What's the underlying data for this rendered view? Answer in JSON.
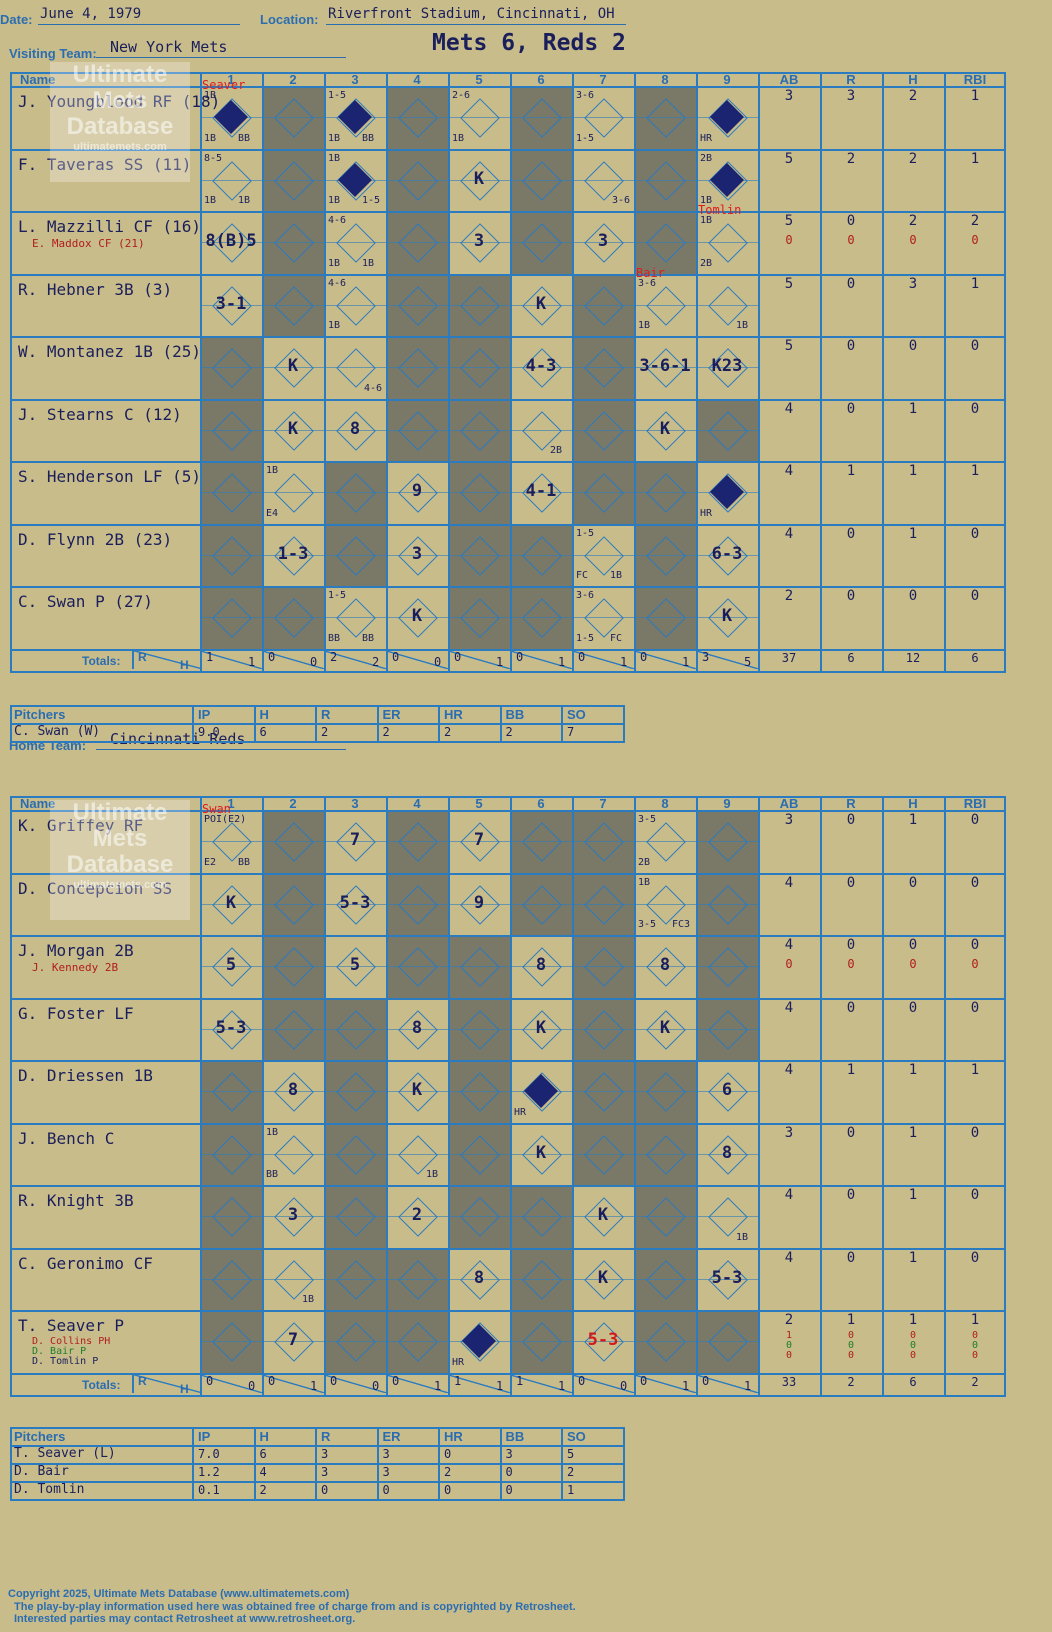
{
  "header": {
    "date_label": "Date:",
    "date": "June 4, 1979",
    "location_label": "Location:",
    "location": "Riverfront Stadium, Cincinnati, OH",
    "result": "Mets 6, Reds 2"
  },
  "labels": {
    "visiting_team": "Visiting Team:",
    "home_team": "Home Team:",
    "name": "Name",
    "innings": [
      "1",
      "2",
      "3",
      "4",
      "5",
      "6",
      "7",
      "8",
      "9"
    ],
    "stat_cols": [
      "AB",
      "R",
      "H",
      "RBI"
    ],
    "totals": "Totals:",
    "r": "R",
    "h": "H",
    "pitchers": "Pitchers",
    "pcols": [
      "IP",
      "H",
      "R",
      "ER",
      "HR",
      "BB",
      "SO"
    ]
  },
  "visitors": {
    "team": "New York Mets",
    "players": [
      {
        "name": "J. Youngblood RF (18)",
        "sub": "",
        "stats": [
          "3",
          "3",
          "2",
          "1"
        ],
        "sub_stats": null
      },
      {
        "name": "F. Taveras SS (11)",
        "sub": "",
        "stats": [
          "5",
          "2",
          "2",
          "1"
        ],
        "sub_stats": null
      },
      {
        "name": "L. Mazzilli CF (16)",
        "sub": "E. Maddox CF (21)",
        "stats": [
          "5",
          "0",
          "2",
          "2"
        ],
        "sub_stats": [
          "0",
          "0",
          "0",
          "0"
        ]
      },
      {
        "name": "R. Hebner 3B (3)",
        "sub": "",
        "stats": [
          "5",
          "0",
          "3",
          "1"
        ],
        "sub_stats": null
      },
      {
        "name": "W. Montanez 1B (25)",
        "sub": "",
        "stats": [
          "5",
          "0",
          "0",
          "0"
        ],
        "sub_stats": null
      },
      {
        "name": "J. Stearns C (12)",
        "sub": "",
        "stats": [
          "4",
          "0",
          "1",
          "0"
        ],
        "sub_stats": null
      },
      {
        "name": "S. Henderson LF (5)",
        "sub": "",
        "stats": [
          "4",
          "1",
          "1",
          "1"
        ],
        "sub_stats": null
      },
      {
        "name": "D. Flynn 2B (23)",
        "sub": "",
        "stats": [
          "4",
          "0",
          "1",
          "0"
        ],
        "sub_stats": null
      },
      {
        "name": "C. Swan P (27)",
        "sub": "",
        "stats": [
          "2",
          "0",
          "0",
          "0"
        ],
        "sub_stats": null
      }
    ],
    "events": [
      {
        "r": 0,
        "c": 0,
        "t": "",
        "notes": [
          "1B",
          "1B",
          "BB"
        ],
        "run": true,
        "pitcher_note": "Seaver"
      },
      {
        "r": 0,
        "c": 2,
        "t": "",
        "notes": [
          "1-5",
          "1B",
          "BB"
        ],
        "run": true
      },
      {
        "r": 0,
        "c": 4,
        "t": "",
        "notes": [
          "2-6",
          "1B"
        ]
      },
      {
        "r": 0,
        "c": 6,
        "t": "",
        "notes": [
          "3-6",
          "1-5"
        ]
      },
      {
        "r": 0,
        "c": 8,
        "t": "",
        "notes": [
          "HR"
        ],
        "run": true
      },
      {
        "r": 1,
        "c": 0,
        "t": "",
        "notes": [
          "8-5",
          "1B",
          "1B"
        ]
      },
      {
        "r": 1,
        "c": 2,
        "t": "",
        "notes": [
          "1B",
          "1B",
          "1-5"
        ],
        "run": true
      },
      {
        "r": 1,
        "c": 4,
        "t": "K",
        "notes": []
      },
      {
        "r": 1,
        "c": 6,
        "t": "",
        "notes": [
          "3-6"
        ]
      },
      {
        "r": 1,
        "c": 8,
        "t": "",
        "notes": [
          "2B",
          "1B"
        ],
        "run": true
      },
      {
        "r": 2,
        "c": 0,
        "t": "8(B)5",
        "notes": []
      },
      {
        "r": 2,
        "c": 2,
        "t": "",
        "notes": [
          "4-6",
          "1B",
          "1B"
        ]
      },
      {
        "r": 2,
        "c": 4,
        "t": "3",
        "notes": []
      },
      {
        "r": 2,
        "c": 6,
        "t": "3",
        "notes": []
      },
      {
        "r": 2,
        "c": 8,
        "t": "",
        "notes": [
          "1B",
          "2B"
        ],
        "pitcher_note": "Tomlin"
      },
      {
        "r": 3,
        "c": 0,
        "t": "3-1",
        "notes": []
      },
      {
        "r": 3,
        "c": 2,
        "t": "",
        "notes": [
          "4-6",
          "1B"
        ]
      },
      {
        "r": 3,
        "c": 5,
        "t": "K",
        "notes": []
      },
      {
        "r": 3,
        "c": 7,
        "t": "",
        "notes": [
          "3-6",
          "1B"
        ],
        "pitcher_note": "Bair"
      },
      {
        "r": 3,
        "c": 8,
        "t": "",
        "notes": [
          "1B"
        ]
      },
      {
        "r": 4,
        "c": 1,
        "t": "K",
        "notes": []
      },
      {
        "r": 4,
        "c": 2,
        "t": "",
        "notes": [
          "4-6"
        ]
      },
      {
        "r": 4,
        "c": 5,
        "t": "4-3",
        "notes": []
      },
      {
        "r": 4,
        "c": 7,
        "t": "3-6-1",
        "notes": []
      },
      {
        "r": 4,
        "c": 8,
        "t": "K23",
        "notes": []
      },
      {
        "r": 5,
        "c": 1,
        "t": "K",
        "notes": []
      },
      {
        "r": 5,
        "c": 2,
        "t": "8",
        "notes": []
      },
      {
        "r": 5,
        "c": 5,
        "t": "",
        "notes": [
          "2B"
        ]
      },
      {
        "r": 5,
        "c": 7,
        "t": "K",
        "notes": []
      },
      {
        "r": 6,
        "c": 1,
        "t": "",
        "notes": [
          "1B",
          "E4"
        ]
      },
      {
        "r": 6,
        "c": 3,
        "t": "9",
        "notes": []
      },
      {
        "r": 6,
        "c": 5,
        "t": "4-1",
        "notes": []
      },
      {
        "r": 6,
        "c": 8,
        "t": "",
        "notes": [
          "HR"
        ],
        "run": true
      },
      {
        "r": 7,
        "c": 1,
        "t": "1-3",
        "notes": []
      },
      {
        "r": 7,
        "c": 3,
        "t": "3",
        "notes": []
      },
      {
        "r": 7,
        "c": 6,
        "t": "",
        "notes": [
          "1-5",
          "FC",
          "1B"
        ]
      },
      {
        "r": 7,
        "c": 8,
        "t": "6-3",
        "notes": []
      },
      {
        "r": 8,
        "c": 2,
        "t": "",
        "notes": [
          "1-5",
          "BB",
          "BB"
        ]
      },
      {
        "r": 8,
        "c": 3,
        "t": "K",
        "notes": []
      },
      {
        "r": 8,
        "c": 6,
        "t": "",
        "notes": [
          "3-6",
          "1-5",
          "FC"
        ]
      },
      {
        "r": 8,
        "c": 8,
        "t": "K",
        "notes": []
      }
    ],
    "shaded": [
      [
        0,
        1
      ],
      [
        0,
        3
      ],
      [
        0,
        5
      ],
      [
        0,
        7
      ],
      [
        1,
        1
      ],
      [
        1,
        3
      ],
      [
        1,
        5
      ],
      [
        1,
        7
      ],
      [
        2,
        1
      ],
      [
        2,
        3
      ],
      [
        2,
        5
      ],
      [
        2,
        7
      ],
      [
        3,
        1
      ],
      [
        3,
        3
      ],
      [
        3,
        4
      ],
      [
        3,
        6
      ],
      [
        4,
        0
      ],
      [
        4,
        3
      ],
      [
        4,
        4
      ],
      [
        4,
        6
      ],
      [
        5,
        0
      ],
      [
        5,
        3
      ],
      [
        5,
        4
      ],
      [
        5,
        6
      ],
      [
        5,
        8
      ],
      [
        6,
        0
      ],
      [
        6,
        2
      ],
      [
        6,
        4
      ],
      [
        6,
        6
      ],
      [
        6,
        7
      ],
      [
        7,
        0
      ],
      [
        7,
        2
      ],
      [
        7,
        4
      ],
      [
        7,
        5
      ],
      [
        7,
        7
      ],
      [
        8,
        0
      ],
      [
        8,
        1
      ],
      [
        8,
        4
      ],
      [
        8,
        5
      ],
      [
        8,
        7
      ]
    ],
    "inning_totals": [
      [
        "1",
        "1"
      ],
      [
        "0",
        "0"
      ],
      [
        "2",
        "2"
      ],
      [
        "0",
        "0"
      ],
      [
        "0",
        "1"
      ],
      [
        "0",
        "1"
      ],
      [
        "0",
        "1"
      ],
      [
        "0",
        "1"
      ],
      [
        "3",
        "5"
      ]
    ],
    "totals": [
      "37",
      "6",
      "12",
      "6"
    ],
    "pitchers": [
      {
        "name": "C. Swan (W)",
        "vals": [
          "9.0",
          "6",
          "2",
          "2",
          "2",
          "2",
          "7"
        ]
      }
    ]
  },
  "home": {
    "team": "Cincinnati Reds",
    "players": [
      {
        "name": "K. Griffey RF",
        "subs": [],
        "stats": [
          "3",
          "0",
          "1",
          "0"
        ]
      },
      {
        "name": "D. Concepcion SS",
        "subs": [],
        "stats": [
          "4",
          "0",
          "0",
          "0"
        ]
      },
      {
        "name": "J. Morgan 2B",
        "subs": [
          "J. Kennedy 2B"
        ],
        "stats": [
          "4",
          "0",
          "0",
          "0"
        ],
        "sub_stats": [
          [
            "0",
            "0",
            "0",
            "0"
          ]
        ]
      },
      {
        "name": "G. Foster LF",
        "subs": [],
        "stats": [
          "4",
          "0",
          "0",
          "0"
        ]
      },
      {
        "name": "D. Driessen 1B",
        "subs": [],
        "stats": [
          "4",
          "1",
          "1",
          "1"
        ]
      },
      {
        "name": "J. Bench C",
        "subs": [],
        "stats": [
          "3",
          "0",
          "1",
          "0"
        ]
      },
      {
        "name": "R. Knight 3B",
        "subs": [],
        "stats": [
          "4",
          "0",
          "1",
          "0"
        ]
      },
      {
        "name": "C. Geronimo CF",
        "subs": [],
        "stats": [
          "4",
          "0",
          "1",
          "0"
        ]
      },
      {
        "name": "T. Seaver P",
        "subs": [
          "D. Collins PH",
          "D. Bair P",
          "D. Tomlin P"
        ],
        "stats": [
          "2",
          "1",
          "1",
          "1"
        ],
        "sub_stats": [
          [
            "1",
            "0",
            "0",
            "0"
          ],
          [
            "0",
            "0",
            "0",
            "0"
          ],
          [
            "0",
            "0",
            "0",
            "0"
          ]
        ]
      }
    ],
    "events": [
      {
        "r": 0,
        "c": 0,
        "t": "",
        "notes": [
          "POI(E2)",
          "E2",
          "BB"
        ],
        "pitcher_note": "Swan"
      },
      {
        "r": 0,
        "c": 2,
        "t": "7",
        "notes": []
      },
      {
        "r": 0,
        "c": 4,
        "t": "7",
        "notes": []
      },
      {
        "r": 0,
        "c": 7,
        "t": "",
        "notes": [
          "3-5",
          "2B"
        ]
      },
      {
        "r": 1,
        "c": 0,
        "t": "K",
        "notes": []
      },
      {
        "r": 1,
        "c": 2,
        "t": "5-3",
        "notes": []
      },
      {
        "r": 1,
        "c": 4,
        "t": "9",
        "notes": []
      },
      {
        "r": 1,
        "c": 7,
        "t": "",
        "notes": [
          "1B",
          "3-5",
          "FC3"
        ]
      },
      {
        "r": 2,
        "c": 0,
        "t": "5",
        "notes": []
      },
      {
        "r": 2,
        "c": 2,
        "t": "5",
        "notes": []
      },
      {
        "r": 2,
        "c": 5,
        "t": "8",
        "notes": []
      },
      {
        "r": 2,
        "c": 7,
        "t": "8",
        "notes": []
      },
      {
        "r": 3,
        "c": 0,
        "t": "5-3",
        "notes": []
      },
      {
        "r": 3,
        "c": 3,
        "t": "8",
        "notes": []
      },
      {
        "r": 3,
        "c": 5,
        "t": "K",
        "notes": []
      },
      {
        "r": 3,
        "c": 7,
        "t": "K",
        "notes": []
      },
      {
        "r": 4,
        "c": 1,
        "t": "8",
        "notes": []
      },
      {
        "r": 4,
        "c": 3,
        "t": "K",
        "notes": []
      },
      {
        "r": 4,
        "c": 5,
        "t": "",
        "notes": [
          "HR"
        ],
        "run": true
      },
      {
        "r": 4,
        "c": 8,
        "t": "6",
        "notes": []
      },
      {
        "r": 5,
        "c": 1,
        "t": "",
        "notes": [
          "1B",
          "BB"
        ]
      },
      {
        "r": 5,
        "c": 3,
        "t": "",
        "notes": [
          "1B"
        ]
      },
      {
        "r": 5,
        "c": 5,
        "t": "K",
        "notes": []
      },
      {
        "r": 5,
        "c": 8,
        "t": "8",
        "notes": []
      },
      {
        "r": 6,
        "c": 1,
        "t": "3",
        "notes": []
      },
      {
        "r": 6,
        "c": 3,
        "t": "2",
        "notes": []
      },
      {
        "r": 6,
        "c": 6,
        "t": "K",
        "notes": []
      },
      {
        "r": 6,
        "c": 8,
        "t": "",
        "notes": [
          "1B"
        ]
      },
      {
        "r": 7,
        "c": 1,
        "t": "",
        "notes": [
          "1B"
        ]
      },
      {
        "r": 7,
        "c": 4,
        "t": "8",
        "notes": []
      },
      {
        "r": 7,
        "c": 6,
        "t": "K",
        "notes": []
      },
      {
        "r": 7,
        "c": 8,
        "t": "5-3",
        "notes": []
      },
      {
        "r": 8,
        "c": 1,
        "t": "7",
        "notes": []
      },
      {
        "r": 8,
        "c": 4,
        "t": "",
        "notes": [
          "HR"
        ],
        "run": true
      },
      {
        "r": 8,
        "c": 6,
        "t": "5-3",
        "notes": [],
        "red": true
      }
    ],
    "shaded": [
      [
        0,
        1
      ],
      [
        0,
        3
      ],
      [
        0,
        5
      ],
      [
        0,
        6
      ],
      [
        0,
        8
      ],
      [
        1,
        1
      ],
      [
        1,
        3
      ],
      [
        1,
        5
      ],
      [
        1,
        6
      ],
      [
        1,
        8
      ],
      [
        2,
        1
      ],
      [
        2,
        3
      ],
      [
        2,
        4
      ],
      [
        2,
        6
      ],
      [
        2,
        8
      ],
      [
        3,
        1
      ],
      [
        3,
        2
      ],
      [
        3,
        4
      ],
      [
        3,
        6
      ],
      [
        3,
        8
      ],
      [
        4,
        0
      ],
      [
        4,
        2
      ],
      [
        4,
        4
      ],
      [
        4,
        6
      ],
      [
        4,
        7
      ],
      [
        5,
        0
      ],
      [
        5,
        2
      ],
      [
        5,
        4
      ],
      [
        5,
        6
      ],
      [
        5,
        7
      ],
      [
        6,
        0
      ],
      [
        6,
        2
      ],
      [
        6,
        4
      ],
      [
        6,
        5
      ],
      [
        6,
        7
      ],
      [
        7,
        0
      ],
      [
        7,
        2
      ],
      [
        7,
        3
      ],
      [
        7,
        5
      ],
      [
        7,
        7
      ],
      [
        8,
        0
      ],
      [
        8,
        2
      ],
      [
        8,
        3
      ],
      [
        8,
        5
      ],
      [
        8,
        7
      ],
      [
        8,
        8
      ]
    ],
    "inning_totals": [
      [
        "0",
        "0"
      ],
      [
        "0",
        "1"
      ],
      [
        "0",
        "0"
      ],
      [
        "0",
        "1"
      ],
      [
        "1",
        "1"
      ],
      [
        "1",
        "1"
      ],
      [
        "0",
        "0"
      ],
      [
        "0",
        "1"
      ],
      [
        "0",
        "1"
      ]
    ],
    "totals": [
      "33",
      "2",
      "6",
      "2"
    ],
    "pitchers": [
      {
        "name": "T. Seaver (L)",
        "vals": [
          "7.0",
          "6",
          "3",
          "3",
          "0",
          "3",
          "5"
        ]
      },
      {
        "name": "D. Bair",
        "vals": [
          "1.2",
          "4",
          "3",
          "3",
          "2",
          "0",
          "2"
        ]
      },
      {
        "name": "D. Tomlin",
        "vals": [
          "0.1",
          "2",
          "0",
          "0",
          "0",
          "0",
          "1"
        ]
      }
    ]
  },
  "watermark": {
    "line1": "Ultimate",
    "line2": "Mets",
    "line3": "Database",
    "line4": "ultimatemets.com"
  },
  "footer": {
    "line1": "Copyright 2025, Ultimate Mets Database (www.ultimatemets.com)",
    "line2": "The play-by-play information used here was obtained free of charge from and is copyrighted by Retrosheet.",
    "line3": "Interested parties may contact Retrosheet at www.retrosheet.org."
  },
  "colors": {
    "grid": "#2a7bbf",
    "paper": "#c9bc8b",
    "shade": "#7a7866",
    "ink": "#1a1f5c",
    "red": "#d11a1a"
  }
}
